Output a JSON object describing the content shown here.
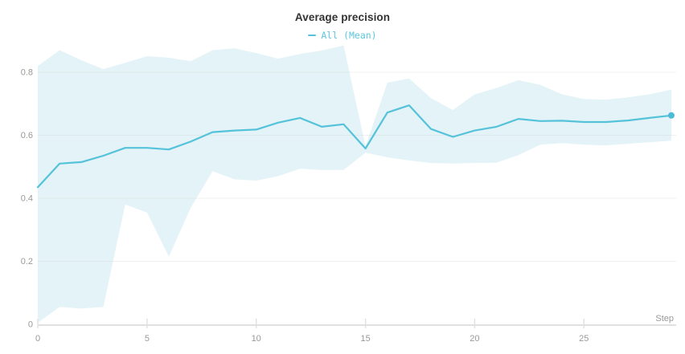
{
  "chart": {
    "title": "Average precision",
    "legend": [
      {
        "label": "All (Mean)",
        "color": "#5bc6dc"
      }
    ]
  },
  "chart_data": {
    "type": "line",
    "title": "Average precision",
    "xlabel": "Step",
    "ylabel": "",
    "xlim": [
      0,
      29
    ],
    "ylim": [
      0,
      0.9
    ],
    "grid": true,
    "legend_position": "top-center",
    "x_ticks": [
      0,
      5,
      10,
      15,
      20,
      25
    ],
    "y_ticks": [
      {
        "v": 0,
        "label": "0"
      },
      {
        "v": 0.2,
        "label": "0.2"
      },
      {
        "v": 0.4,
        "label": "0.4"
      },
      {
        "v": 0.6,
        "label": "0.6"
      },
      {
        "v": 0.8,
        "label": "0.8"
      }
    ],
    "series": [
      {
        "name": "All (Mean)",
        "x": [
          0,
          1,
          2,
          3,
          4,
          5,
          6,
          7,
          8,
          9,
          10,
          11,
          12,
          13,
          14,
          15,
          16,
          17,
          18,
          19,
          20,
          21,
          22,
          23,
          24,
          25,
          26,
          27,
          28,
          29
        ],
        "y": [
          0.435,
          0.51,
          0.515,
          0.535,
          0.56,
          0.56,
          0.555,
          0.58,
          0.61,
          0.615,
          0.618,
          0.64,
          0.655,
          0.627,
          0.635,
          0.558,
          0.672,
          0.695,
          0.62,
          0.595,
          0.615,
          0.627,
          0.652,
          0.645,
          0.646,
          0.642,
          0.642,
          0.647,
          0.655,
          0.663
        ]
      }
    ],
    "band": {
      "name": "All (min/max range)",
      "upper": [
        0.82,
        0.87,
        0.838,
        0.81,
        0.83,
        0.851,
        0.846,
        0.835,
        0.87,
        0.876,
        0.861,
        0.843,
        0.858,
        0.869,
        0.885,
        0.565,
        0.767,
        0.78,
        0.718,
        0.68,
        0.73,
        0.75,
        0.775,
        0.76,
        0.73,
        0.715,
        0.713,
        0.72,
        0.73,
        0.745
      ],
      "lower": [
        0.005,
        0.055,
        0.05,
        0.055,
        0.38,
        0.355,
        0.215,
        0.37,
        0.486,
        0.46,
        0.456,
        0.47,
        0.494,
        0.49,
        0.49,
        0.545,
        0.53,
        0.52,
        0.512,
        0.51,
        0.512,
        0.513,
        0.537,
        0.57,
        0.575,
        0.57,
        0.568,
        0.573,
        0.578,
        0.583
      ]
    },
    "colors": {
      "line": "#54c3da",
      "marker": "#4cbcd6",
      "band": "#e3f3f7",
      "grid": "#cfcfcf",
      "axis": "#e0e0e0",
      "tick_label": "#999999",
      "axis_title": "#999999",
      "title": "#333333"
    }
  }
}
